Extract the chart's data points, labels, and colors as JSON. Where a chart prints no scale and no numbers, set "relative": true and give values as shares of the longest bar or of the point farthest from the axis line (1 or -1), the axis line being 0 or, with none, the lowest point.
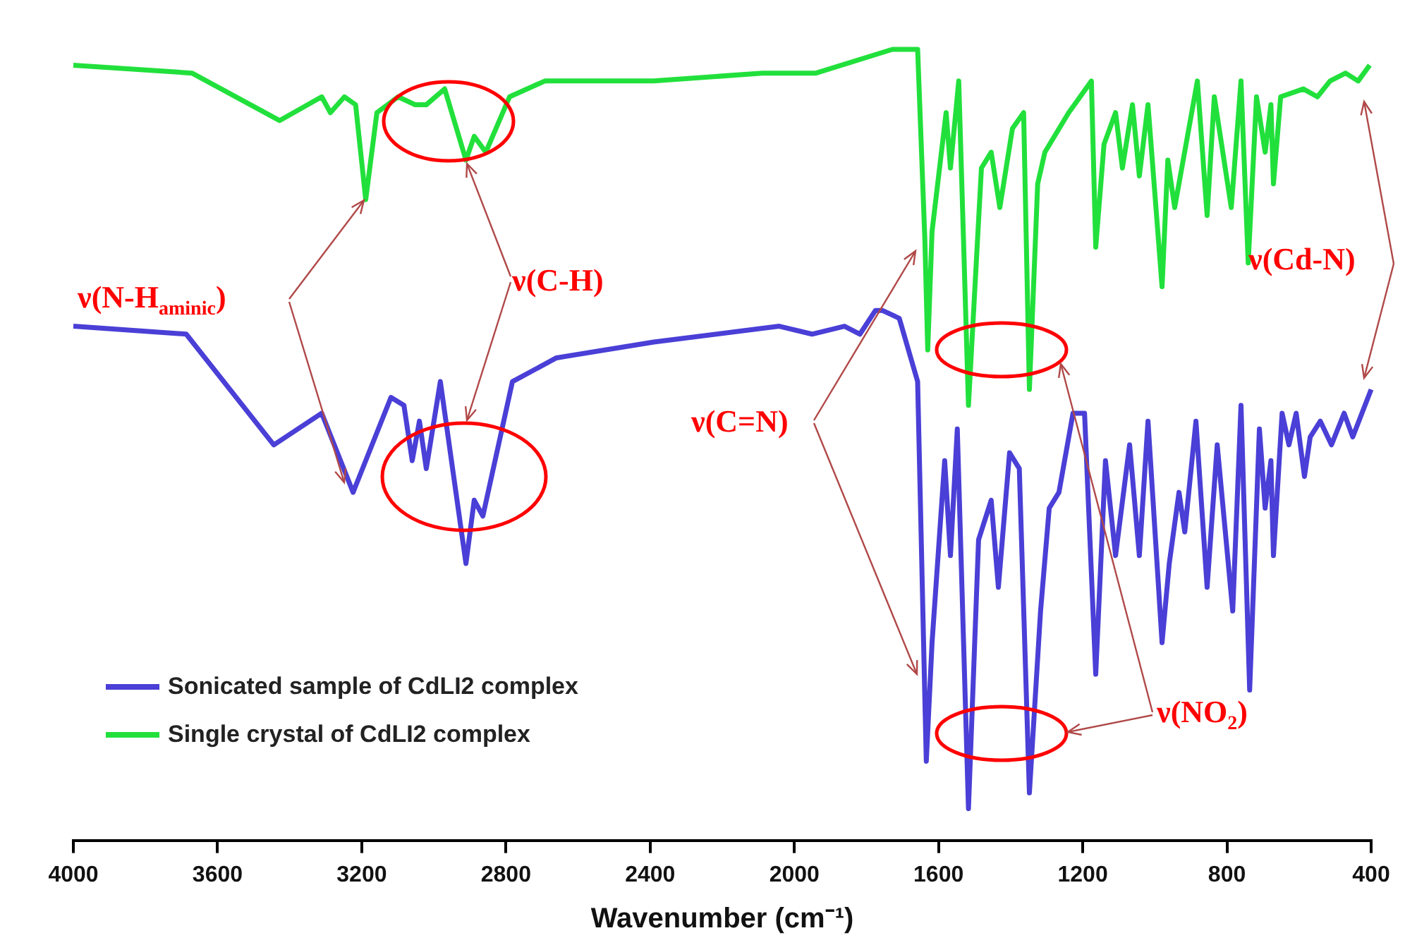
{
  "chart_data": {
    "type": "line",
    "relative": true,
    "xlabel": "Wavenumber (cm⁻¹)",
    "xlim": [
      4000,
      400
    ],
    "xticks": [
      4000,
      3600,
      3200,
      2800,
      2400,
      2000,
      1600,
      1200,
      800,
      400
    ],
    "grid": false,
    "legend": "bottom left",
    "annotations": [
      "ν(N-H$_{aminic}$)",
      "ν(C-H)",
      "ν(C=N)",
      "ν(NO$_{2}$)",
      "ν(Cd-N)"
    ],
    "series": [
      {
        "name": "Sonicated sample of CdLI2 complex",
        "color": "#4a3fd6",
        "x": [
          4000,
          3687,
          3444,
          3311,
          3224,
          3119,
          3083,
          3060,
          3040,
          3021,
          2982,
          2911,
          2888,
          2864,
          2782,
          2660,
          2390,
          2042,
          1951,
          1861,
          1818,
          1775,
          1756,
          1709,
          1658,
          1634,
          1618,
          1583,
          1567,
          1548,
          1517,
          1489,
          1454,
          1434,
          1403,
          1376,
          1348,
          1317,
          1293,
          1266,
          1227,
          1195,
          1164,
          1137,
          1109,
          1070,
          1043,
          1019,
          980,
          960,
          933,
          917,
          886,
          855,
          827,
          784,
          761,
          737,
          710,
          694,
          678,
          671,
          647,
          628,
          608,
          585,
          569,
          541,
          510,
          475,
          451,
          400
        ],
        "values": [
          0.65,
          0.64,
          0.5,
          0.54,
          0.44,
          0.56,
          0.55,
          0.48,
          0.53,
          0.47,
          0.58,
          0.35,
          0.43,
          0.41,
          0.58,
          0.61,
          0.63,
          0.65,
          0.64,
          0.65,
          0.64,
          0.67,
          0.67,
          0.66,
          0.58,
          0.1,
          0.25,
          0.48,
          0.36,
          0.52,
          0.04,
          0.38,
          0.43,
          0.32,
          0.49,
          0.47,
          0.06,
          0.29,
          0.42,
          0.44,
          0.54,
          0.54,
          0.21,
          0.48,
          0.36,
          0.5,
          0.36,
          0.53,
          0.25,
          0.35,
          0.44,
          0.39,
          0.53,
          0.32,
          0.5,
          0.29,
          0.55,
          0.19,
          0.52,
          0.42,
          0.48,
          0.36,
          0.54,
          0.5,
          0.54,
          0.46,
          0.51,
          0.53,
          0.5,
          0.54,
          0.51,
          0.57
        ]
      },
      {
        "name": "Single crystal of CdLI2 complex",
        "color": "#22e03c",
        "x": [
          4000,
          3671,
          3428,
          3311,
          3287,
          3248,
          3217,
          3189,
          3158,
          3099,
          3052,
          3021,
          2970,
          2911,
          2888,
          2856,
          2790,
          2692,
          2390,
          2089,
          1940,
          1728,
          1658,
          1638,
          1630,
          1618,
          1579,
          1567,
          1544,
          1517,
          1481,
          1454,
          1430,
          1395,
          1364,
          1348,
          1325,
          1305,
          1239,
          1176,
          1164,
          1141,
          1109,
          1090,
          1062,
          1043,
          1019,
          980,
          964,
          945,
          882,
          855,
          835,
          788,
          761,
          741,
          718,
          694,
          678,
          671,
          651,
          588,
          549,
          514,
          471,
          436,
          404
        ],
        "values": [
          0.98,
          0.97,
          0.91,
          0.94,
          0.92,
          0.94,
          0.93,
          0.81,
          0.92,
          0.94,
          0.93,
          0.93,
          0.95,
          0.86,
          0.89,
          0.87,
          0.94,
          0.96,
          0.96,
          0.97,
          0.97,
          1.0,
          1.0,
          0.76,
          0.62,
          0.77,
          0.92,
          0.85,
          0.96,
          0.55,
          0.85,
          0.87,
          0.8,
          0.9,
          0.92,
          0.57,
          0.83,
          0.87,
          0.92,
          0.96,
          0.75,
          0.88,
          0.92,
          0.85,
          0.93,
          0.84,
          0.93,
          0.7,
          0.86,
          0.8,
          0.96,
          0.79,
          0.94,
          0.8,
          0.96,
          0.73,
          0.94,
          0.87,
          0.93,
          0.83,
          0.94,
          0.95,
          0.94,
          0.96,
          0.97,
          0.96,
          0.98
        ]
      }
    ]
  }
}
